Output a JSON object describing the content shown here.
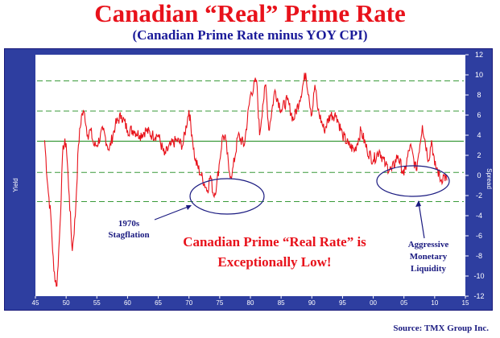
{
  "header": {
    "title": "Canadian “Real” Prime Rate",
    "subtitle": "(Canadian Prime Rate minus YOY CPI)"
  },
  "footer": {
    "source": "Source: TMX Group Inc."
  },
  "colors": {
    "title": "#e8121b",
    "subtitle": "#1a1a99",
    "frame": "#2e3ea0",
    "series": "#e8121b",
    "mean_line": "#3a9a3a",
    "band_line": "#3a9a3a",
    "annotation": "#1a1a80"
  },
  "annotations": {
    "stagflation": [
      "1970s",
      "Stagflation"
    ],
    "center": [
      "Canadian Prime “Real Rate” is",
      "Exceptionally Low!"
    ],
    "liquidity": [
      "Aggressive",
      "Monetary",
      "Liquidity"
    ]
  },
  "chart_data": {
    "type": "line",
    "title": "Canadian “Real” Prime Rate",
    "subtitle": "(Canadian Prime Rate minus YOY CPI)",
    "ylabel_left": "Yield",
    "ylabel_right": "Spread",
    "x_ticks": [
      "45",
      "50",
      "55",
      "60",
      "65",
      "70",
      "75",
      "80",
      "85",
      "90",
      "95",
      "00",
      "05",
      "10",
      "15"
    ],
    "y_ticks": [
      12,
      10,
      8,
      6,
      4,
      2,
      0,
      -2,
      -4,
      -6,
      -8,
      -10,
      -12
    ],
    "xlim": [
      1945,
      2015
    ],
    "ylim": [
      -12,
      12
    ],
    "grid": false,
    "reference_lines": [
      {
        "style": "solid",
        "y": 3.4
      },
      {
        "style": "dashed",
        "y": 9.4
      },
      {
        "style": "dashed",
        "y": 6.4
      },
      {
        "style": "dashed",
        "y": 0.3
      },
      {
        "style": "dashed",
        "y": -2.6
      }
    ],
    "series": [
      {
        "x": [
          1946.5,
          1947.0,
          1947.5,
          1948.0,
          1948.5,
          1949.0,
          1949.5,
          1950.0,
          1950.5,
          1951.0,
          1951.5,
          1952.0,
          1952.5,
          1953.0,
          1953.5,
          1954.0,
          1954.5,
          1955.0,
          1956.0,
          1957.0,
          1958.0,
          1959.0,
          1960.0,
          1961.0,
          1962.0,
          1963.0,
          1964.0,
          1965.0,
          1966.0,
          1967.0,
          1968.0,
          1969.0,
          1970.0,
          1970.5,
          1971.0,
          1972.0,
          1973.0,
          1973.5,
          1974.0,
          1974.5,
          1975.0,
          1975.5,
          1976.0,
          1976.5,
          1977.0,
          1978.0,
          1979.0,
          1980.0,
          1981.0,
          1981.5,
          1982.0,
          1982.5,
          1983.0,
          1984.0,
          1985.0,
          1986.0,
          1987.0,
          1988.0,
          1989.0,
          1989.5,
          1990.0,
          1990.5,
          1991.0,
          1992.0,
          1993.0,
          1994.0,
          1995.0,
          1996.0,
          1997.0,
          1998.0,
          1999.0,
          2000.0,
          2001.0,
          2002.0,
          2003.0,
          2004.0,
          2005.0,
          2006.0,
          2007.0,
          2008.0,
          2009.0,
          2009.5,
          2010.0,
          2010.5,
          2011.0,
          2011.5,
          2012.0
        ],
        "values": [
          3.5,
          -1.0,
          -4.0,
          -9.5,
          -11.0,
          -5.0,
          3.0,
          3.2,
          -2.0,
          -7.5,
          -4.0,
          3.0,
          6.0,
          6.2,
          4.0,
          4.5,
          3.0,
          3.0,
          4.5,
          2.5,
          5.0,
          6.0,
          4.5,
          4.5,
          4.0,
          4.5,
          4.0,
          4.0,
          2.0,
          3.0,
          3.5,
          3.0,
          6.5,
          4.0,
          1.5,
          0.0,
          -1.5,
          0.0,
          -2.0,
          -1.0,
          1.5,
          4.0,
          3.5,
          0.5,
          0.0,
          4.0,
          3.0,
          8.0,
          9.5,
          4.0,
          7.0,
          9.0,
          4.5,
          8.5,
          6.5,
          7.5,
          5.5,
          7.5,
          10.2,
          8.0,
          6.0,
          9.0,
          6.5,
          4.5,
          6.0,
          6.0,
          4.0,
          3.0,
          2.5,
          4.5,
          2.5,
          1.5,
          2.5,
          1.0,
          0.5,
          2.0,
          0.0,
          3.0,
          0.5,
          5.0,
          1.5,
          3.5,
          1.0,
          0.5,
          -0.5,
          0.0,
          -0.5
        ]
      }
    ]
  }
}
